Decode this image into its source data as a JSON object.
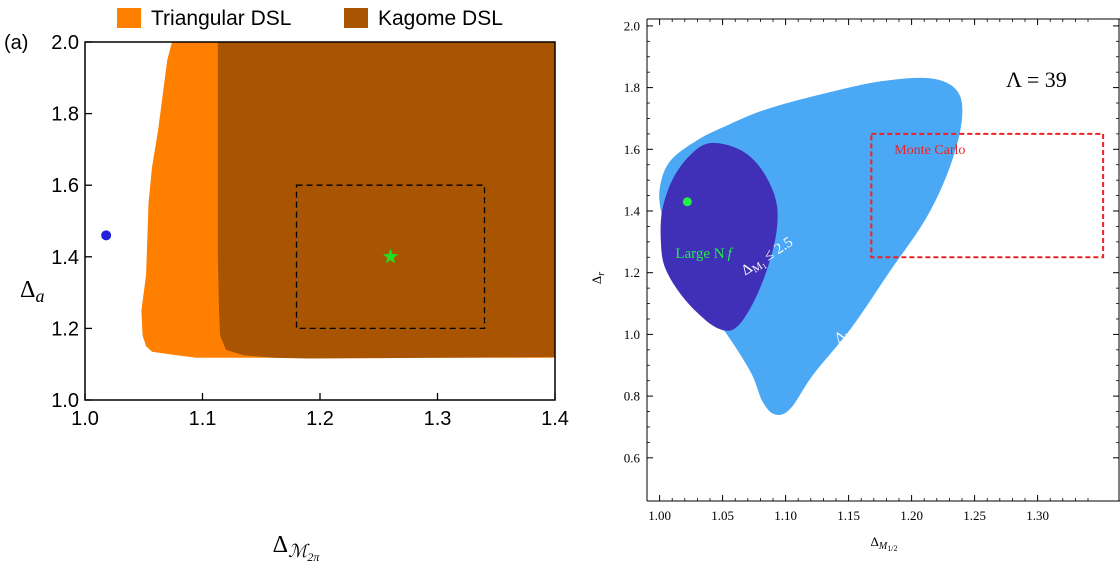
{
  "chart_data": [
    {
      "type": "area",
      "panel_label": "(a)",
      "xlabel_base": "Δ",
      "xlabel_sub": "ℳ",
      "xlabel_subsub": "2π",
      "ylabel_base": "Δ",
      "ylabel_sub": "a",
      "xlim": [
        1.0,
        1.4
      ],
      "ylim": [
        1.0,
        2.0
      ],
      "xticks": [
        "1.0",
        "1.1",
        "1.2",
        "1.3",
        "1.4"
      ],
      "yticks": [
        "1.0",
        "1.2",
        "1.4",
        "1.6",
        "1.8",
        "2.0"
      ],
      "legend_position": "top",
      "legend": [
        {
          "name": "Triangular DSL",
          "color": "#ff8000"
        },
        {
          "name": "Kagome DSL",
          "color": "#a85400"
        }
      ],
      "series": [
        {
          "name": "Triangular DSL",
          "color": "#ff8000",
          "x": [
            1.074,
            1.07,
            1.066,
            1.062,
            1.057,
            1.054,
            1.053,
            1.052,
            1.048,
            1.049,
            1.052,
            1.057,
            1.078,
            1.095,
            1.165,
            1.4,
            1.4,
            1.074
          ],
          "y": [
            2.0,
            1.95,
            1.85,
            1.75,
            1.65,
            1.55,
            1.45,
            1.35,
            1.25,
            1.18,
            1.15,
            1.135,
            1.125,
            1.118,
            1.118,
            1.118,
            2.0,
            2.0
          ]
        },
        {
          "name": "Kagome DSL",
          "color": "#a85400",
          "x": [
            1.113,
            1.113,
            1.113,
            1.113,
            1.114,
            1.115,
            1.12,
            1.135,
            1.16,
            1.19,
            1.3,
            1.4,
            1.4,
            1.113
          ],
          "y": [
            2.0,
            1.8,
            1.6,
            1.4,
            1.25,
            1.18,
            1.14,
            1.125,
            1.118,
            1.116,
            1.118,
            1.12,
            2.0,
            2.0
          ]
        }
      ],
      "box": {
        "x": [
          1.18,
          1.34
        ],
        "y": [
          1.2,
          1.6
        ],
        "style": "dashed",
        "color": "#000000"
      },
      "points": [
        {
          "x": 1.018,
          "y": 1.46,
          "marker": "circle",
          "color": "#2222dd"
        },
        {
          "x": 1.26,
          "y": 1.4,
          "marker": "star",
          "color": "#22dd22"
        }
      ]
    },
    {
      "type": "area",
      "xlabel_base": "Δ",
      "xlabel_sub": "M",
      "xlabel_subsub": "1/2",
      "ylabel_base": "Δ",
      "ylabel_sub": "r",
      "xlim": [
        0.99,
        1.34
      ],
      "ylim": [
        0.46,
        2.02
      ],
      "xticks": [
        "1.00",
        "1.05",
        "1.10",
        "1.15",
        "1.20",
        "1.25",
        "1.30"
      ],
      "xtick_values": [
        1.0,
        1.05,
        1.1,
        1.15,
        1.2,
        1.25,
        1.3
      ],
      "yticks": [
        "0.6",
        "0.8",
        "1.0",
        "1.2",
        "1.4",
        "1.6",
        "1.8",
        "2.0"
      ],
      "ytick_values": [
        0.6,
        0.8,
        1.0,
        1.2,
        1.4,
        1.6,
        1.8,
        2.0
      ],
      "annotation_lambda": "Λ = 39",
      "region_labels": [
        {
          "base": "Δ",
          "sub": "M",
          "subsub": "1",
          "rest": " ≤ 2.5",
          "x": 1.068,
          "y": 1.19,
          "rotation": -33,
          "color": "#ffffff"
        },
        {
          "base": "Δ",
          "sub": "M",
          "subsub": "1",
          "rest": " ≤ 2.6",
          "x": 1.142,
          "y": 0.97,
          "rotation": -33,
          "color": "#ffffff"
        }
      ],
      "series": [
        {
          "name": "ΔM1 ≤ 2.6",
          "color": "#4aa8f5",
          "x": [
            1.085,
            1.13,
            1.175,
            1.215,
            1.236,
            1.24,
            1.231,
            1.212,
            1.182,
            1.152,
            1.122,
            1.104,
            1.092,
            1.082,
            1.072,
            1.05,
            1.025,
            1.008,
            1.002,
            1.0,
            1.008,
            1.03,
            1.055,
            1.085
          ],
          "y": [
            1.73,
            1.78,
            1.82,
            1.83,
            1.79,
            1.7,
            1.55,
            1.38,
            1.2,
            1.02,
            0.87,
            0.76,
            0.74,
            0.78,
            0.88,
            1.02,
            1.15,
            1.28,
            1.38,
            1.47,
            1.56,
            1.63,
            1.68,
            1.73
          ]
        },
        {
          "name": "ΔM1 ≤ 2.5",
          "color": "#4030b8",
          "x": [
            1.04,
            1.063,
            1.08,
            1.092,
            1.093,
            1.086,
            1.074,
            1.06,
            1.046,
            1.03,
            1.015,
            1.004,
            1.001,
            1.002,
            1.01,
            1.024,
            1.04
          ],
          "y": [
            1.62,
            1.6,
            1.54,
            1.44,
            1.34,
            1.22,
            1.1,
            1.02,
            1.02,
            1.07,
            1.14,
            1.22,
            1.3,
            1.4,
            1.5,
            1.58,
            1.62
          ]
        }
      ],
      "box": {
        "label": "Monte Carlo",
        "x": [
          1.168,
          1.352
        ],
        "y": [
          1.25,
          1.65
        ],
        "style": "dashed",
        "color": "#ee2222"
      },
      "points": [
        {
          "label": "Large N",
          "label_sub": "f",
          "x": 1.022,
          "y": 1.43,
          "marker": "circle",
          "color": "#22ee44"
        }
      ]
    }
  ]
}
